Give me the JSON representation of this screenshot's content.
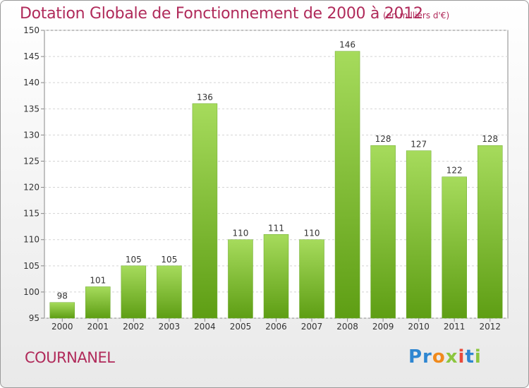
{
  "title": "Dotation Globale de Fonctionnement de 2000 à 2012",
  "unit": "(en milliers d'€)",
  "commune": "COURNANEL",
  "logo": {
    "p1": "Pr",
    "p2": "o",
    "p3": "x",
    "p4": "i",
    "p5": "t",
    "p6": "i"
  },
  "chart_data": {
    "type": "bar",
    "categories": [
      "2000",
      "2001",
      "2002",
      "2003",
      "2004",
      "2005",
      "2006",
      "2007",
      "2008",
      "2009",
      "2010",
      "2011",
      "2012"
    ],
    "values": [
      98,
      101,
      105,
      105,
      136,
      110,
      111,
      110,
      146,
      128,
      127,
      122,
      128
    ],
    "ylim": [
      95,
      150
    ],
    "yticks": [
      95,
      100,
      105,
      110,
      115,
      120,
      125,
      130,
      135,
      140,
      145,
      150
    ],
    "bar_color": "#7dc130",
    "grid": true
  }
}
